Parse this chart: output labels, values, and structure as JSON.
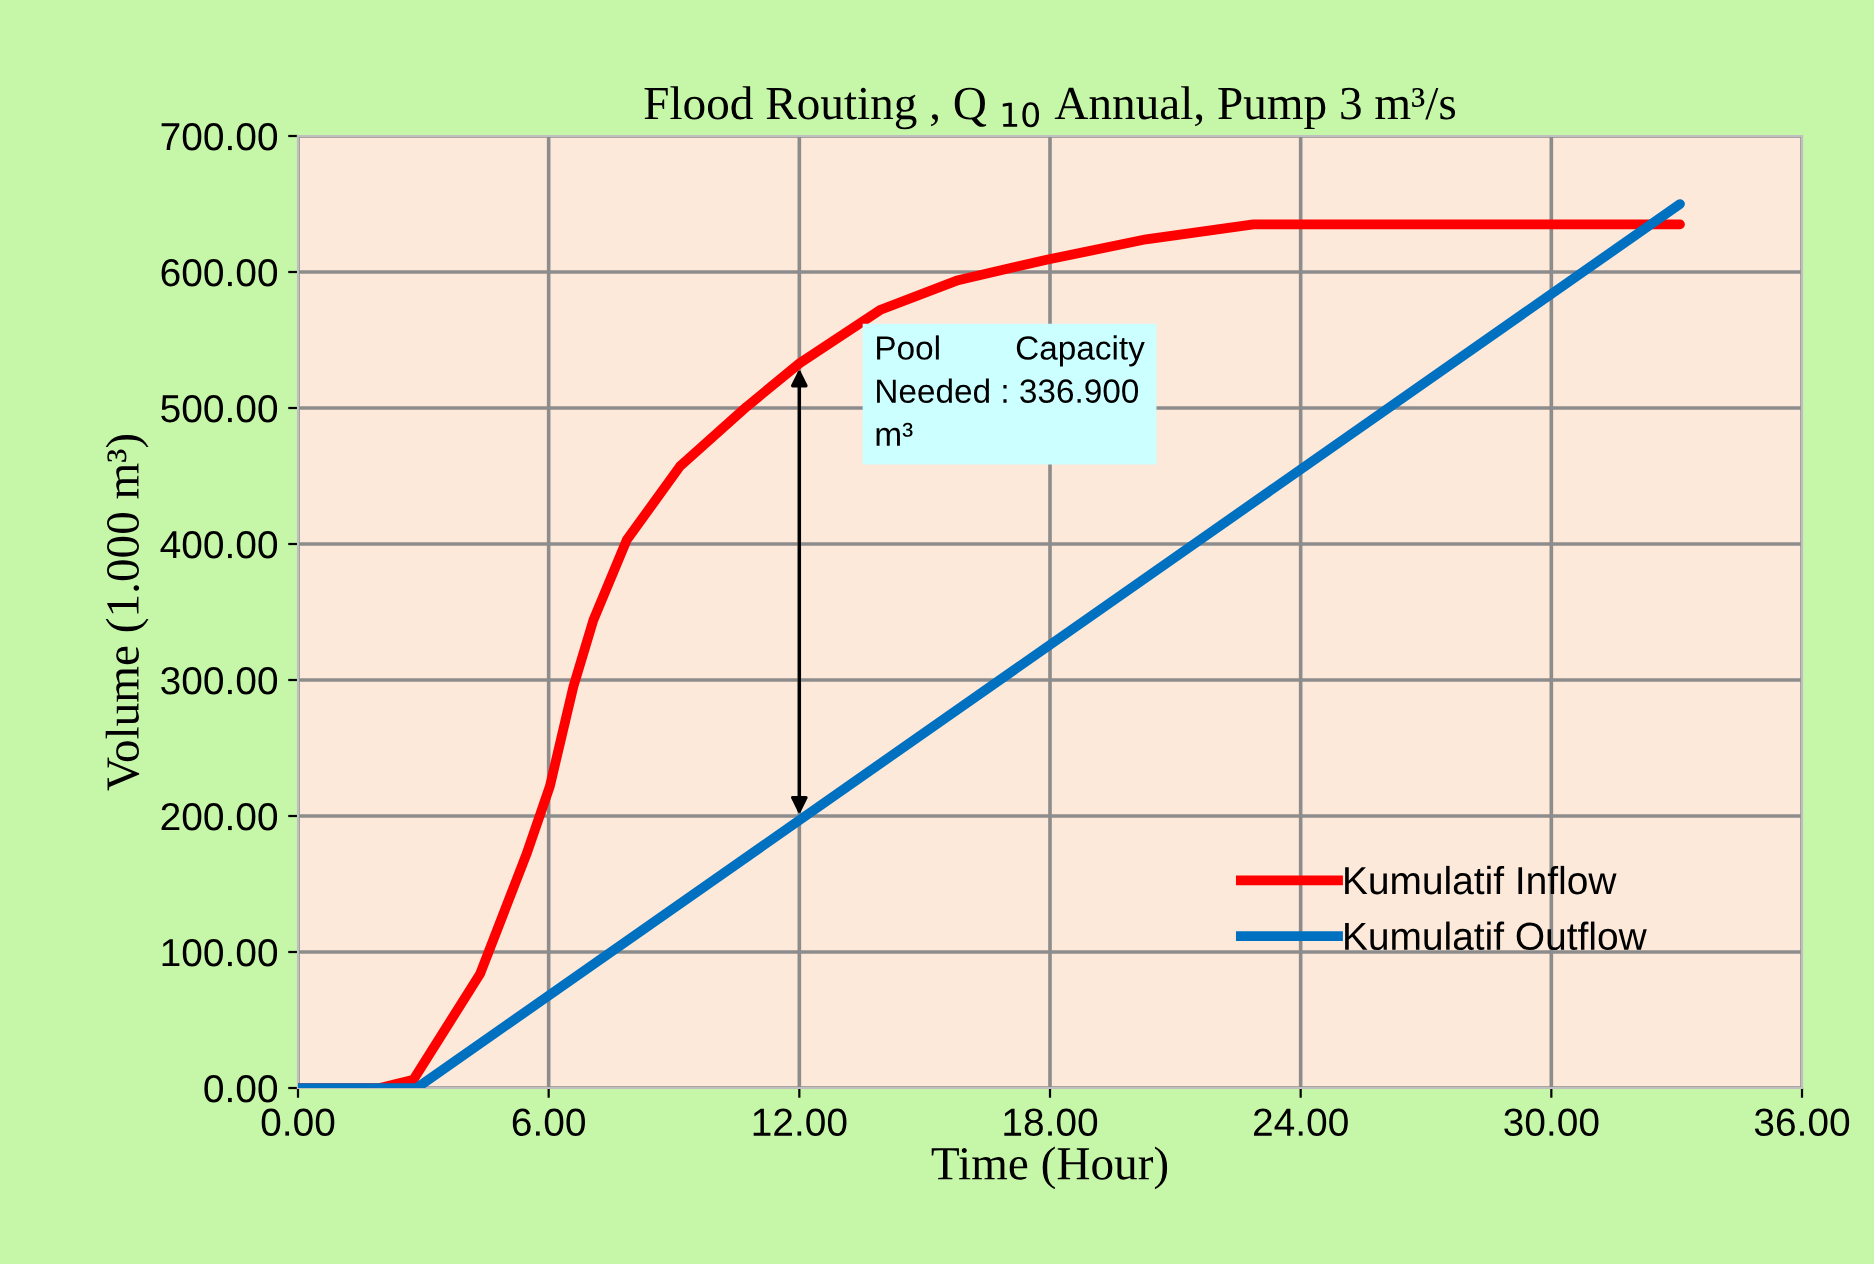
{
  "chart_data": {
    "type": "line",
    "title": "Flood Routing , Q $_{10}$ Annual, Pump 3 m³/s",
    "xlabel": "Time (Hour)",
    "ylabel": "Volume (1.000 m³)",
    "series": [
      {
        "name": "Kumulatif Inflow",
        "color": "#ff0000",
        "x": [
          0,
          1.96,
          2.76,
          4.36,
          5.47,
          6.03,
          6.59,
          7.07,
          7.87,
          9.14,
          10.74,
          12.01,
          13.93,
          15.8,
          17.92,
          20.3,
          22.87,
          33.08
        ],
        "values": [
          0,
          0,
          6,
          84,
          172,
          222,
          295,
          344,
          403,
          457,
          501,
          533,
          572,
          594,
          609,
          624,
          635,
          635
        ]
      },
      {
        "name": "Kumulatif Outflow",
        "color": "#0070c0",
        "x": [
          0,
          2.84,
          33.08
        ],
        "values": [
          0,
          0,
          650
        ]
      }
    ],
    "xlim": [
      0,
      36
    ],
    "ylim": [
      0,
      700
    ],
    "xticks": [
      {
        "value": 0,
        "label": "0.00"
      },
      {
        "value": 6,
        "label": "6.00"
      },
      {
        "value": 12,
        "label": "12.00"
      },
      {
        "value": 18,
        "label": "18.00"
      },
      {
        "value": 24,
        "label": "24.00"
      },
      {
        "value": 30,
        "label": "30.00"
      },
      {
        "value": 36,
        "label": "36.00"
      }
    ],
    "yticks": [
      {
        "value": 0,
        "label": "0.00"
      },
      {
        "value": 100,
        "label": "100.00"
      },
      {
        "value": 200,
        "label": "200.00"
      },
      {
        "value": 300,
        "label": "300.00"
      },
      {
        "value": 400,
        "label": "400.00"
      },
      {
        "value": 500,
        "label": "500.00"
      },
      {
        "value": 600,
        "label": "600.00"
      },
      {
        "value": 700,
        "label": "700.00"
      }
    ],
    "annotations": [
      {
        "text": "Pool        Capacity\nNeeded : 336.900\nm³",
        "x": 12,
        "y": 533
      }
    ],
    "grid": true,
    "legend": "bottom right",
    "marker": "none",
    "line_style": "solid"
  }
}
